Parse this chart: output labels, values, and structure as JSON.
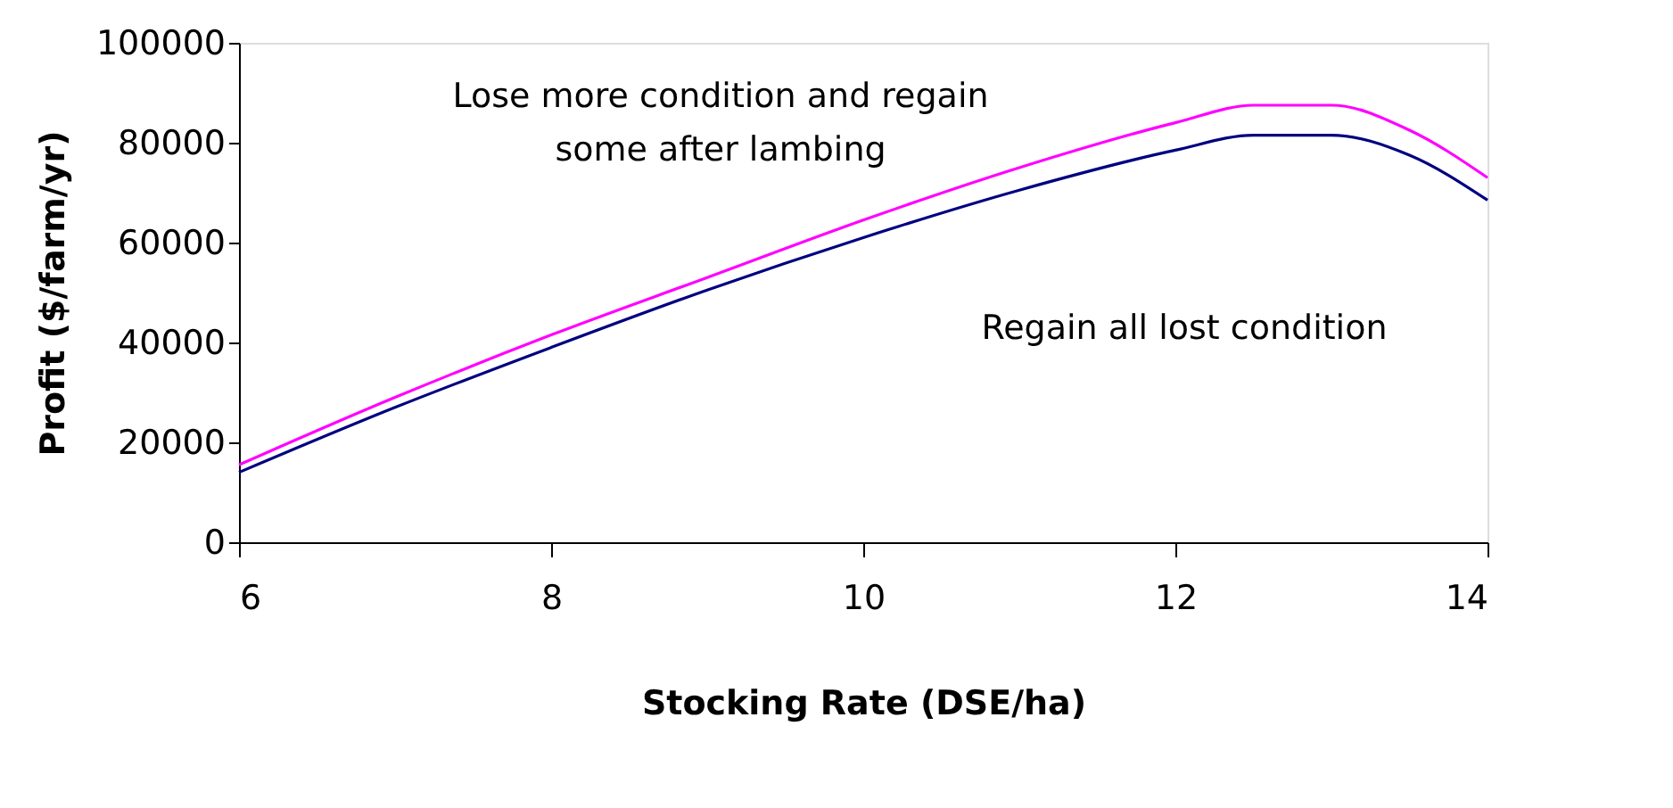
{
  "chart_data": {
    "type": "line",
    "xlabel": "Stocking Rate (DSE/ha)",
    "ylabel": "Profit ($/farm/yr)",
    "x": [
      6,
      7,
      8,
      9,
      10,
      11,
      12,
      12.5,
      13,
      13.5,
      14
    ],
    "series": [
      {
        "color": "#ff00ff",
        "values": [
          15500,
          29000,
          41500,
          53000,
          64500,
          75000,
          84000,
          87500,
          87500,
          82500,
          73000
        ]
      },
      {
        "color": "#000080",
        "values": [
          14000,
          27000,
          39000,
          50500,
          61000,
          70500,
          78500,
          81500,
          81500,
          77500,
          68500
        ]
      }
    ],
    "xlim": [
      6,
      14
    ],
    "xticks": [
      6,
      8,
      10,
      12,
      14
    ],
    "ylim": [
      0,
      100000
    ],
    "yticks": [
      0,
      20000,
      40000,
      60000,
      80000,
      100000
    ],
    "grid": false,
    "legend": false,
    "marker": "none",
    "line_style": "solid",
    "annotations": [
      "Lose more condition and regain\nsome after lambing",
      "Regain all lost condition"
    ]
  }
}
